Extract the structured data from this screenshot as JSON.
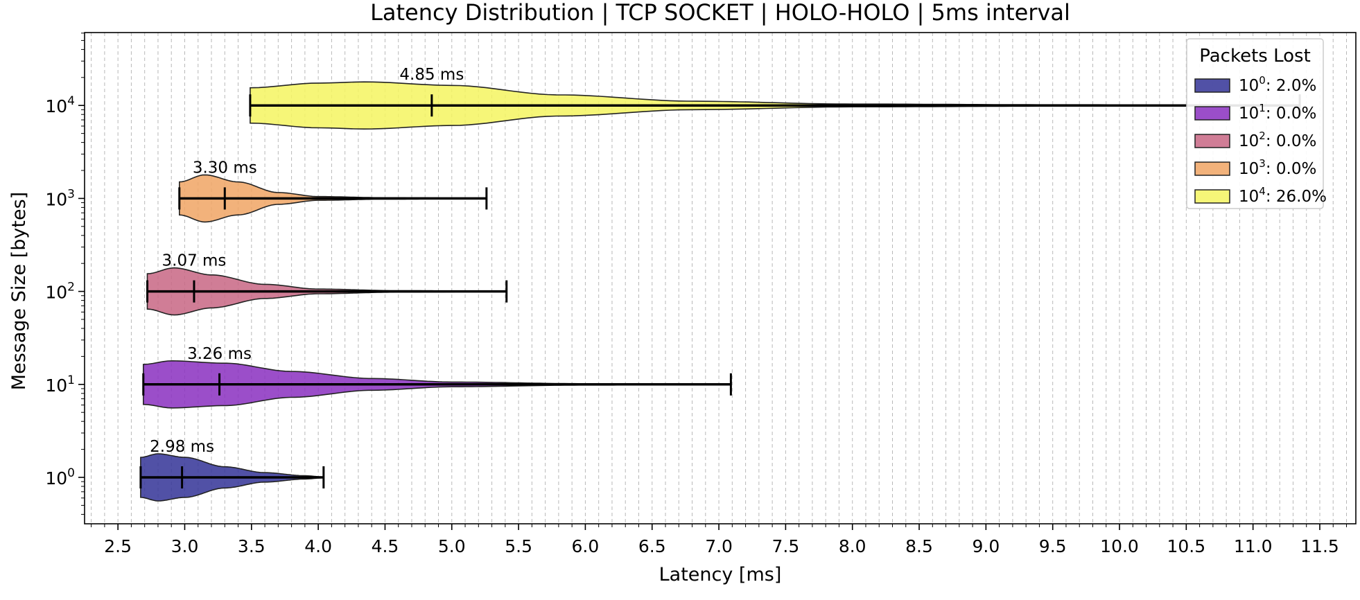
{
  "chart_data": {
    "type": "violin",
    "orientation": "horizontal",
    "title": "Latency Distribution | TCP SOCKET | HOLO-HOLO | 5ms interval",
    "xlabel": "Latency [ms]",
    "ylabel": "Message Size [bytes]",
    "xlim": [
      2.25,
      11.77
    ],
    "x_ticks": [
      "2.5",
      "3.0",
      "3.5",
      "4.0",
      "4.5",
      "5.0",
      "5.5",
      "6.0",
      "6.5",
      "7.0",
      "7.5",
      "8.0",
      "8.5",
      "9.0",
      "9.5",
      "10.0",
      "10.5",
      "11.0",
      "11.5"
    ],
    "y_scale": "log",
    "y_ticks": [
      {
        "base": "10",
        "exp": "0"
      },
      {
        "base": "10",
        "exp": "1"
      },
      {
        "base": "10",
        "exp": "2"
      },
      {
        "base": "10",
        "exp": "3"
      },
      {
        "base": "10",
        "exp": "4"
      }
    ],
    "grid": "vertical dashed",
    "legend": {
      "title": "Packets Lost",
      "placement": "top-right",
      "entries": [
        {
          "base": "10",
          "exp": "0",
          "text": ": 2.0%"
        },
        {
          "base": "10",
          "exp": "1",
          "text": ": 0.0%"
        },
        {
          "base": "10",
          "exp": "2",
          "text": ": 0.0%"
        },
        {
          "base": "10",
          "exp": "3",
          "text": ": 0.0%"
        },
        {
          "base": "10",
          "exp": "4",
          "text": ": 26.0%"
        }
      ]
    },
    "series": [
      {
        "size": 1,
        "min": 2.67,
        "max": 4.04,
        "mean": 2.98,
        "mean_label": "2.98 ms",
        "packets_lost_pct": 2.0,
        "color": "#323296",
        "density": [
          [
            2.67,
            0.85
          ],
          [
            2.8,
            1.0
          ],
          [
            3.0,
            0.85
          ],
          [
            3.3,
            0.45
          ],
          [
            3.6,
            0.2
          ],
          [
            3.9,
            0.07
          ],
          [
            4.04,
            0.02
          ]
        ]
      },
      {
        "size": 10,
        "min": 2.69,
        "max": 7.09,
        "mean": 3.26,
        "mean_label": "3.26 ms",
        "packets_lost_pct": 0.0,
        "color": "#8a2fbf",
        "density": [
          [
            2.69,
            0.85
          ],
          [
            2.9,
            1.0
          ],
          [
            3.3,
            0.9
          ],
          [
            3.8,
            0.55
          ],
          [
            4.4,
            0.25
          ],
          [
            5.0,
            0.1
          ],
          [
            6.0,
            0.03
          ],
          [
            7.09,
            0.01
          ]
        ]
      },
      {
        "size": 100,
        "min": 2.72,
        "max": 5.41,
        "mean": 3.07,
        "mean_label": "3.07 ms",
        "packets_lost_pct": 0.0,
        "color": "#c86684",
        "density": [
          [
            2.72,
            0.75
          ],
          [
            2.92,
            1.0
          ],
          [
            3.2,
            0.7
          ],
          [
            3.6,
            0.3
          ],
          [
            4.0,
            0.1
          ],
          [
            4.6,
            0.03
          ],
          [
            5.41,
            0.01
          ]
        ]
      },
      {
        "size": 1000,
        "min": 2.96,
        "max": 5.26,
        "mean": 3.3,
        "mean_label": "3.30 ms",
        "packets_lost_pct": 0.0,
        "color": "#f0a464",
        "density": [
          [
            2.96,
            0.7
          ],
          [
            3.15,
            1.0
          ],
          [
            3.4,
            0.7
          ],
          [
            3.7,
            0.25
          ],
          [
            4.0,
            0.08
          ],
          [
            4.5,
            0.03
          ],
          [
            5.26,
            0.01
          ]
        ]
      },
      {
        "size": 10000,
        "min": 3.49,
        "max": 11.35,
        "mean": 4.85,
        "mean_label": "4.85 ms",
        "packets_lost_pct": 26.0,
        "color": "#f5f560",
        "density": [
          [
            3.49,
            0.75
          ],
          [
            4.0,
            0.95
          ],
          [
            4.35,
            1.0
          ],
          [
            5.0,
            0.85
          ],
          [
            5.8,
            0.45
          ],
          [
            6.8,
            0.18
          ],
          [
            8.0,
            0.06
          ],
          [
            9.5,
            0.03
          ],
          [
            11.35,
            0.01
          ]
        ]
      }
    ]
  }
}
